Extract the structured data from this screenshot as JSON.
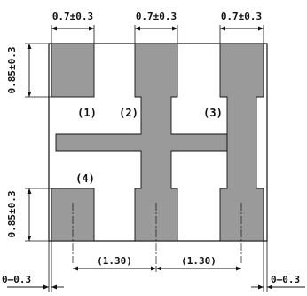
{
  "pad_labels": {
    "pad1": "(1)",
    "pad2": "(2)",
    "pad3": "(3)",
    "pad4": "(4)"
  },
  "dimensions": {
    "pad_width_1": "0.7±0.3",
    "pad_width_2": "0.7±0.3",
    "pad_width_3": "0.7±0.3",
    "pad_height_top": "0.85±0.3",
    "pad_height_bottom": "0.85±0.3",
    "pitch_left": "(1.30)",
    "pitch_right": "(1.30)",
    "edge_offset_left": "0–0.3",
    "edge_offset_right": "0–0.3"
  },
  "colors": {
    "pad_fill": "#9a9a9a",
    "line": "#111111",
    "background": "#ffffff"
  }
}
